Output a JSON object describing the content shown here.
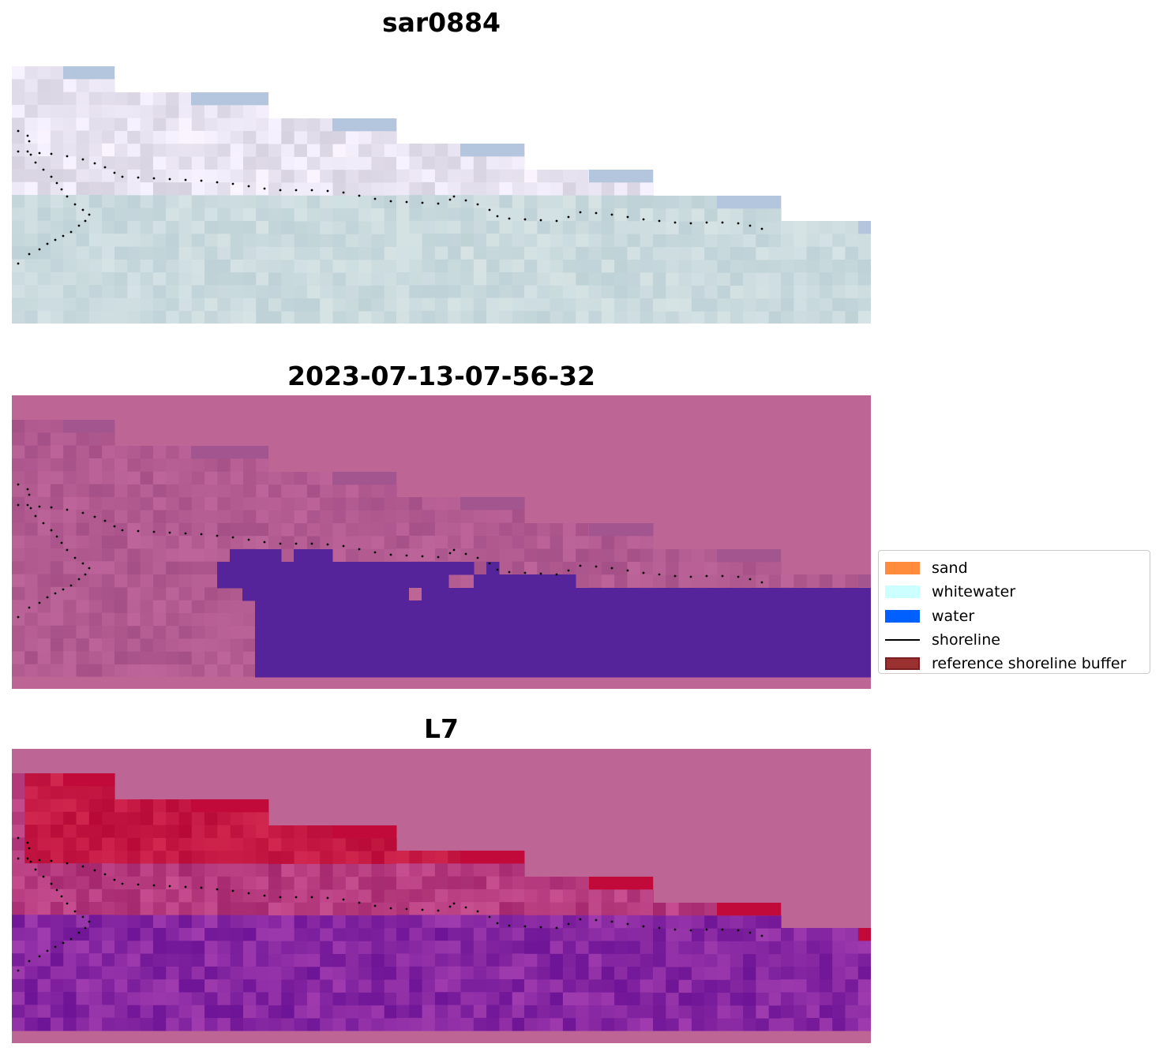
{
  "panels": [
    {
      "title": "sar0884",
      "style": "rgb"
    },
    {
      "title": "2023-07-13-07-56-32",
      "style": "classified"
    },
    {
      "title": "L7",
      "style": "index"
    }
  ],
  "legend": {
    "items": [
      {
        "label": "sand",
        "color": "#ff8c3c",
        "kind": "patch"
      },
      {
        "label": "whitewater",
        "color": "#ccffff",
        "kind": "patch"
      },
      {
        "label": "water",
        "color": "#0060ff",
        "kind": "patch"
      },
      {
        "label": "shoreline",
        "color": "#000000",
        "kind": "line"
      },
      {
        "label": "reference shoreline buffer",
        "color": "#9b3030",
        "kind": "patch-edge"
      }
    ]
  },
  "colors": {
    "nodata": "#bd6696",
    "water_overlay": "#55239a",
    "rgb_base": "#c9dde0",
    "shoreline_points": "#000000"
  }
}
